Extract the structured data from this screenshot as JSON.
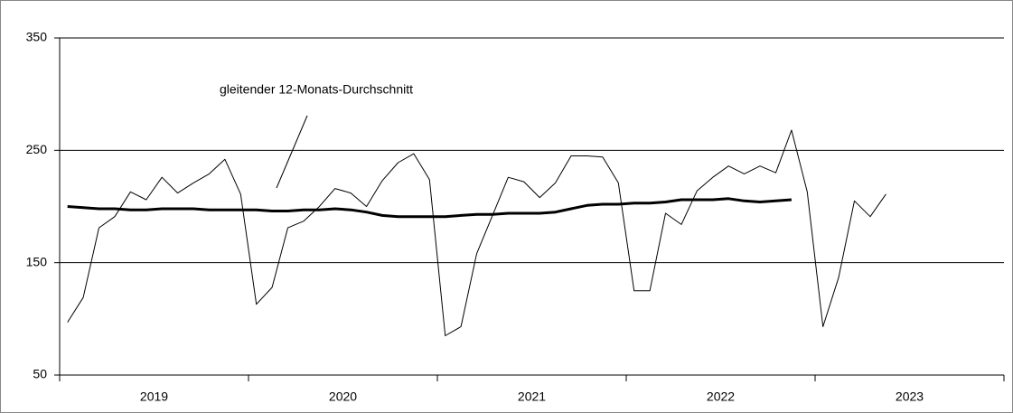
{
  "chart_data": {
    "type": "line",
    "annotation": "gleitender 12-Monats-Durchschnitt",
    "xgroups": [
      "2019",
      "2020",
      "2021",
      "2022",
      "2023"
    ],
    "periods_per_group": 12,
    "ylim": [
      50,
      350
    ],
    "yticks": [
      50,
      150,
      250,
      350
    ],
    "grid": true,
    "series": [
      {
        "color": "#000000",
        "width": 1,
        "values": [
          97,
          119,
          181,
          191,
          213,
          206,
          226,
          212,
          221,
          229,
          242,
          211,
          113,
          128,
          181,
          187,
          200,
          216,
          212,
          200,
          223,
          239,
          247,
          224,
          85,
          93,
          158,
          192,
          226,
          222,
          208,
          221,
          245,
          245,
          244,
          221,
          125,
          125,
          194,
          184,
          214,
          226,
          236,
          229,
          236,
          230,
          268,
          213,
          93,
          137,
          205,
          191,
          211,
          null,
          null,
          null,
          null,
          null,
          null,
          null
        ]
      },
      {
        "color": "#000000",
        "width": 3,
        "values": [
          200,
          199,
          198,
          198,
          197,
          197,
          198,
          198,
          198,
          197,
          197,
          197,
          197,
          196,
          196,
          197,
          197,
          198,
          197,
          195,
          192,
          191,
          191,
          191,
          191,
          192,
          193,
          193,
          194,
          194,
          194,
          195,
          198,
          201,
          202,
          202,
          203,
          203,
          204,
          206,
          206,
          206,
          207,
          205,
          204,
          205,
          206,
          null,
          null,
          null,
          null,
          null,
          null,
          null,
          null,
          null,
          null,
          null,
          null,
          null
        ]
      }
    ]
  }
}
